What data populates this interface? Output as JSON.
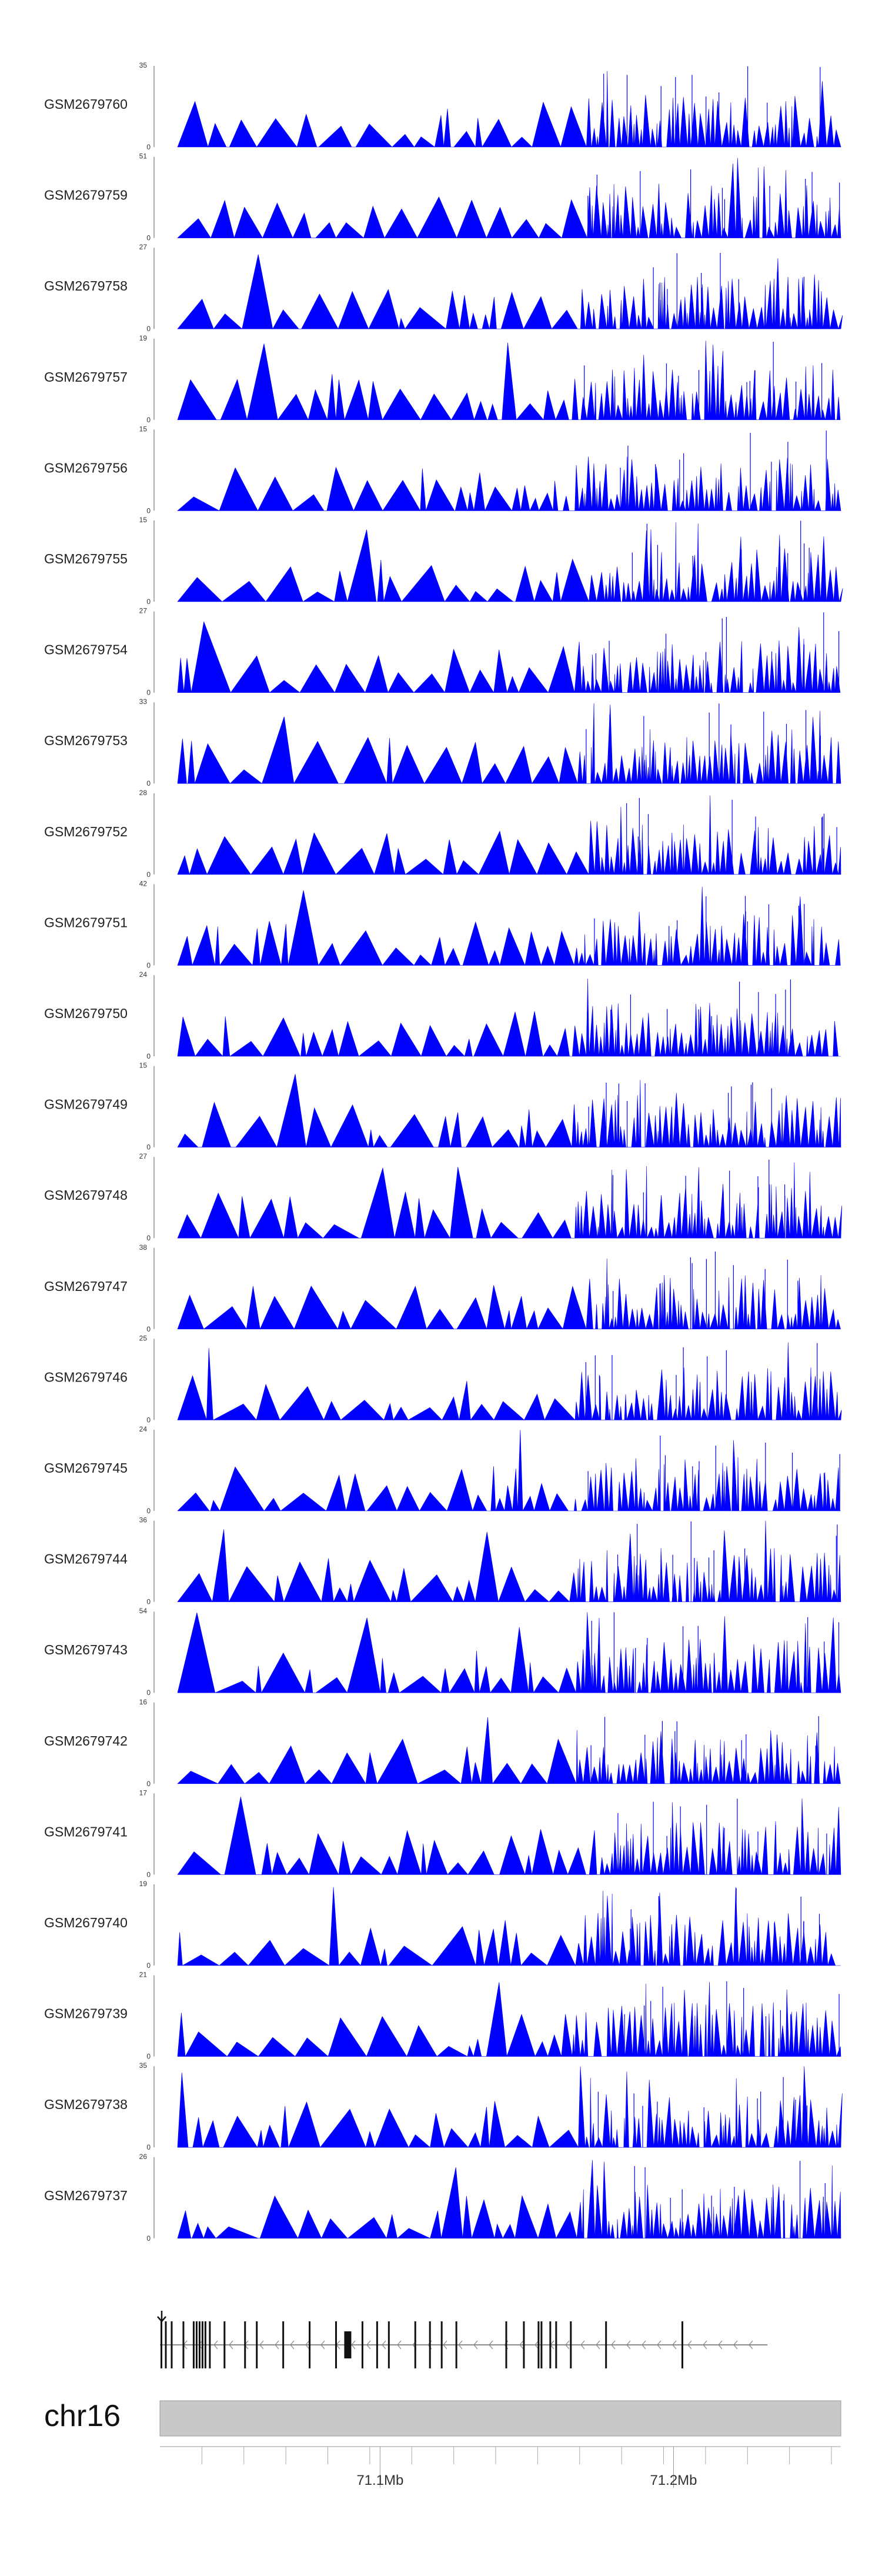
{
  "chart_data": {
    "type": "area",
    "title": "",
    "chromosome": "chr16",
    "region": {
      "start_mb": 71.025,
      "end_mb": 71.257
    },
    "axis_ticks": [
      {
        "value": 71.1,
        "label": "71.1Mb"
      },
      {
        "value": 71.2,
        "label": "71.2Mb"
      }
    ],
    "minor_tick_step_mb": 0.0143,
    "color": "#0000ff",
    "tracks": [
      {
        "name": "GSM2679760",
        "ymax": 35,
        "ymin_label": "0"
      },
      {
        "name": "GSM2679759",
        "ymax": 51,
        "ymin_label": "0"
      },
      {
        "name": "GSM2679758",
        "ymax": 27,
        "ymin_label": "0"
      },
      {
        "name": "GSM2679757",
        "ymax": 19,
        "ymin_label": "0"
      },
      {
        "name": "GSM2679756",
        "ymax": 15,
        "ymin_label": "0"
      },
      {
        "name": "GSM2679755",
        "ymax": 15,
        "ymin_label": "0"
      },
      {
        "name": "GSM2679754",
        "ymax": 27,
        "ymin_label": "0"
      },
      {
        "name": "GSM2679753",
        "ymax": 33,
        "ymin_label": "0"
      },
      {
        "name": "GSM2679752",
        "ymax": 28,
        "ymin_label": "0"
      },
      {
        "name": "GSM2679751",
        "ymax": 42,
        "ymin_label": "0"
      },
      {
        "name": "GSM2679750",
        "ymax": 24,
        "ymin_label": "0"
      },
      {
        "name": "GSM2679749",
        "ymax": 15,
        "ymin_label": "0"
      },
      {
        "name": "GSM2679748",
        "ymax": 27,
        "ymin_label": "0"
      },
      {
        "name": "GSM2679747",
        "ymax": 38,
        "ymin_label": "0"
      },
      {
        "name": "GSM2679746",
        "ymax": 25,
        "ymin_label": "0"
      },
      {
        "name": "GSM2679745",
        "ymax": 24,
        "ymin_label": "0"
      },
      {
        "name": "GSM2679744",
        "ymax": 36,
        "ymin_label": "0"
      },
      {
        "name": "GSM2679743",
        "ymax": 54,
        "ymin_label": "0"
      },
      {
        "name": "GSM2679742",
        "ymax": 16,
        "ymin_label": "0"
      },
      {
        "name": "GSM2679741",
        "ymax": 17,
        "ymin_label": "0"
      },
      {
        "name": "GSM2679740",
        "ymax": 19,
        "ymin_label": "0"
      },
      {
        "name": "GSM2679739",
        "ymax": 21,
        "ymin_label": "0"
      },
      {
        "name": "GSM2679738",
        "ymax": 35,
        "ymin_label": "0"
      },
      {
        "name": "GSM2679737",
        "ymax": 26,
        "ymin_label": "0"
      }
    ],
    "gene_model": {
      "strand": "-",
      "start_mb": 71.025,
      "end_mb": 71.232,
      "exons_mb": [
        71.0255,
        71.027,
        71.029,
        71.033,
        71.0365,
        71.0375,
        71.0385,
        71.0395,
        71.0405,
        71.042,
        71.047,
        71.054,
        71.058,
        71.067,
        71.076,
        71.085,
        71.089,
        71.094,
        71.099,
        71.103,
        71.112,
        71.117,
        71.121,
        71.126,
        71.143,
        71.149,
        71.154,
        71.155,
        71.158,
        71.16,
        71.165,
        71.177,
        71.203
      ]
    }
  }
}
